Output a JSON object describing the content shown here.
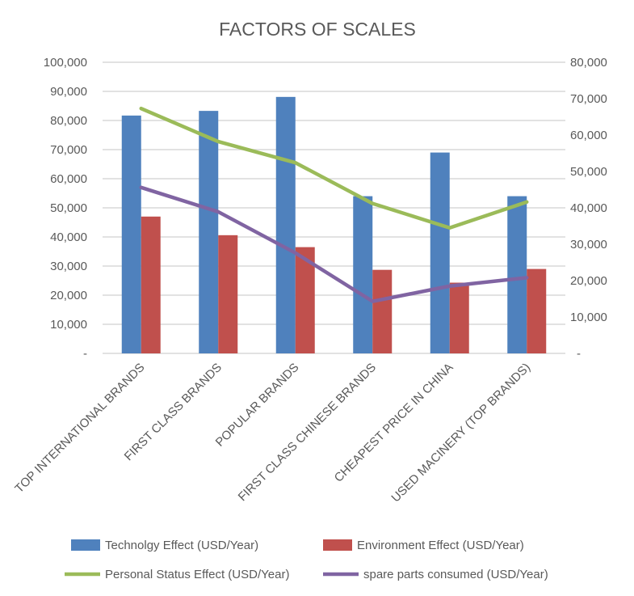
{
  "chart_data": {
    "type": "bar",
    "title": "FACTORS OF SCALES",
    "categories": [
      "TOP INTERNATIONAL BRANDS",
      "FIRST CLASS BRANDS",
      "POPULAR BRANDS",
      "FIRST CLASS CHINESE BRANDS",
      "CHEAPEST PRICE IN CHINA",
      "USED MACINERY (TOP BRANDS)"
    ],
    "left_axis": {
      "ylim": [
        0,
        100000
      ],
      "ticks": [
        "-",
        "10,000",
        "20,000",
        "30,000",
        "40,000",
        "50,000",
        "60,000",
        "70,000",
        "80,000",
        "90,000",
        "100,000"
      ]
    },
    "right_axis": {
      "ylim": [
        0,
        80000
      ],
      "ticks": [
        "-",
        "10,000",
        "20,000",
        "30,000",
        "40,000",
        "50,000",
        "60,000",
        "70,000",
        "80,000"
      ]
    },
    "grid": true,
    "legend_position": "bottom",
    "series": [
      {
        "name": "Technolgy Effect (USD/Year)",
        "type": "bar",
        "axis": "left",
        "color": "#4F81BD",
        "values": [
          81700,
          83300,
          88100,
          54000,
          69000,
          54000
        ]
      },
      {
        "name": "Environment Effect (USD/Year)",
        "type": "bar",
        "axis": "left",
        "color": "#C0504D",
        "values": [
          47000,
          40600,
          36500,
          28700,
          24300,
          29000
        ]
      },
      {
        "name": "Personal Status Effect (USD/Year)",
        "type": "line",
        "axis": "right",
        "color": "#9BBB59",
        "values": [
          67300,
          58200,
          52400,
          41200,
          34500,
          41600
        ]
      },
      {
        "name": "spare parts consumed (USD/Year)",
        "type": "line",
        "axis": "right",
        "color": "#8064A2",
        "values": [
          45600,
          38900,
          27600,
          14300,
          18500,
          20800
        ]
      }
    ]
  }
}
